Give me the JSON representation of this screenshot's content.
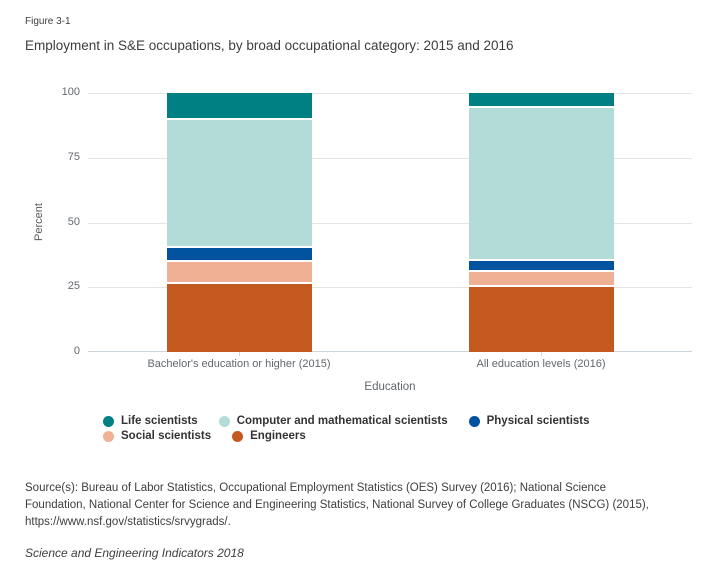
{
  "figure": {
    "label": "Figure 3-1",
    "title": "Employment in S&E occupations, by broad occupational category: 2015 and 2016",
    "source_lines": [
      "Source(s): Bureau of Labor Statistics, Occupational Employment Statistics (OES) Survey (2016); National Science",
      "Foundation, National Center for Science and Engineering Statistics, National Survey of College Graduates (NSCG) (2015),",
      "https://www.nsf.gov/statistics/srvygrads/."
    ],
    "edition": "Science and Engineering Indicators 2018"
  },
  "chart_data": {
    "type": "bar",
    "stacked": true,
    "orientation": "vertical",
    "title": "Employment in S&E occupations, by broad occupational category: 2015 and 2016",
    "categories": [
      "Bachelor's education or higher (2015)",
      "All education levels (2016)"
    ],
    "series": [
      {
        "name": "Engineers",
        "color": "#c4591f",
        "values": [
          27,
          26
        ]
      },
      {
        "name": "Social scientists",
        "color": "#f0b093",
        "values": [
          8.5,
          5.5
        ]
      },
      {
        "name": "Physical scientists",
        "color": "#0153a0",
        "values": [
          5.5,
          4.5
        ]
      },
      {
        "name": "Computer and mathematical scientists",
        "color": "#b3dcd8",
        "values": [
          49.5,
          59
        ]
      },
      {
        "name": "Life scientists",
        "color": "#008083",
        "values": [
          9.5,
          5
        ]
      }
    ],
    "legend_order": [
      "Life scientists",
      "Computer and mathematical scientists",
      "Physical scientists",
      "Social scientists",
      "Engineers"
    ],
    "legend_position": "bottom",
    "xlabel": "Education",
    "ylabel": "Percent",
    "ylim": [
      0,
      100
    ],
    "yticks": [
      0,
      25,
      50,
      75,
      100
    ],
    "grid": true
  },
  "colors": {
    "grid": "#e4e4e4",
    "axis": "#ccd5de",
    "tick_label": "#64686d",
    "text": "#3e3e3e",
    "legend_text": "#333333"
  }
}
